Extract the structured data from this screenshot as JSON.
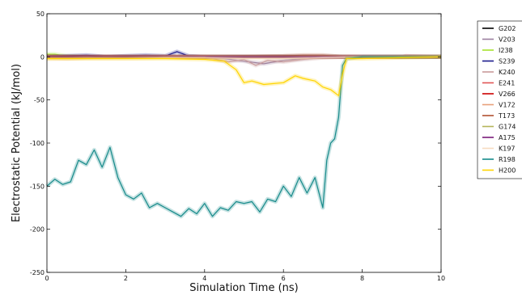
{
  "chart_data": {
    "type": "line",
    "xlabel": "Simulation Time (ns)",
    "ylabel": "Electrostatic Potential (kJ/mol)",
    "xlim": [
      0,
      10
    ],
    "ylim": [
      -250,
      50
    ],
    "xticks": [
      0,
      2,
      4,
      6,
      8,
      10
    ],
    "yticks": [
      50,
      0,
      -50,
      -100,
      -150,
      -200,
      -250
    ],
    "grid": false,
    "legend": "right-outside",
    "series": [
      {
        "name": "G202",
        "color": "#000000",
        "x": [
          0,
          1,
          2,
          3,
          4,
          5,
          6,
          7,
          7.5,
          8,
          9,
          10
        ],
        "y": [
          0,
          0,
          0,
          0,
          0,
          0,
          0,
          0,
          0,
          0,
          0,
          0
        ]
      },
      {
        "name": "V203",
        "color": "#9b7f9e",
        "x": [
          0,
          1,
          2,
          3,
          4,
          4.5,
          5,
          5.5,
          6,
          6.5,
          7,
          7.5,
          8,
          9,
          10
        ],
        "y": [
          0,
          0,
          0,
          0,
          0,
          -2,
          -5,
          -8,
          -4,
          -2,
          0,
          0,
          0,
          0,
          0
        ]
      },
      {
        "name": "I238",
        "color": "#a6e22e",
        "x": [
          0,
          0.2,
          0.5,
          1,
          2,
          3,
          4,
          5,
          6,
          7,
          8,
          9,
          10
        ],
        "y": [
          3,
          3,
          1,
          0,
          0,
          0,
          0,
          0,
          0,
          0,
          0,
          0,
          0
        ]
      },
      {
        "name": "S239",
        "color": "#1a1a8c",
        "x": [
          0,
          0.5,
          1,
          1.5,
          2,
          2.5,
          3,
          3.3,
          3.6,
          4,
          5,
          6,
          7,
          8,
          9,
          10
        ],
        "y": [
          0,
          1,
          2,
          0,
          1,
          2,
          1,
          6,
          1,
          0,
          0,
          0,
          0,
          0,
          0,
          0
        ]
      },
      {
        "name": "K240",
        "color": "#c99a9a",
        "x": [
          0,
          1,
          2,
          3,
          4,
          4.6,
          5,
          5.3,
          5.6,
          6,
          6.5,
          7,
          7.5,
          8,
          9,
          10
        ],
        "y": [
          0,
          0,
          0,
          0,
          0,
          -6,
          -3,
          -10,
          -4,
          -6,
          -3,
          -1,
          0,
          0,
          0,
          0
        ]
      },
      {
        "name": "E241",
        "color": "#e05555",
        "x": [
          0,
          1,
          2,
          3,
          4,
          5,
          6,
          7,
          8,
          9,
          9.1,
          10
        ],
        "y": [
          0,
          0,
          0,
          0,
          0,
          0,
          0,
          0,
          0,
          0,
          1,
          0
        ]
      },
      {
        "name": "V266",
        "color": "#cc0000",
        "x": [
          0,
          1,
          2,
          3,
          4,
          5,
          6,
          7,
          8,
          9,
          10
        ],
        "y": [
          0,
          0,
          0,
          0,
          0,
          0,
          0,
          0,
          0,
          0,
          0
        ]
      },
      {
        "name": "V172",
        "color": "#e8a07a",
        "x": [
          0,
          0.5,
          1,
          2,
          3,
          4,
          5,
          6,
          7,
          8,
          9,
          10
        ],
        "y": [
          -1,
          -2,
          -1,
          0,
          0,
          0,
          0,
          0,
          0,
          0,
          0,
          0
        ]
      },
      {
        "name": "T173",
        "color": "#b05030",
        "x": [
          0,
          1,
          2,
          3,
          4,
          5,
          6,
          6.5,
          7,
          7.5,
          8,
          9,
          10
        ],
        "y": [
          0,
          0,
          0,
          0,
          0,
          0,
          1,
          2,
          2,
          0,
          0,
          0,
          0
        ]
      },
      {
        "name": "G174",
        "color": "#b5b55a",
        "x": [
          0,
          1,
          2,
          3,
          4,
          5,
          6,
          7,
          8,
          9,
          10
        ],
        "y": [
          0,
          0,
          0,
          0,
          0,
          0,
          0,
          0,
          0,
          0,
          0
        ]
      },
      {
        "name": "A175",
        "color": "#7a1a7a",
        "x": [
          0,
          1,
          2,
          3,
          4,
          5,
          6,
          7,
          8,
          9,
          10
        ],
        "y": [
          0,
          0,
          0,
          0,
          0,
          0,
          0,
          0,
          0,
          0,
          0
        ]
      },
      {
        "name": "K197",
        "color": "#f7dcc0",
        "x": [
          0,
          1,
          2,
          3,
          4,
          5,
          6,
          7,
          8,
          9,
          10
        ],
        "y": [
          -3,
          -2,
          -2,
          -1,
          -1,
          -2,
          -2,
          -1,
          0,
          0,
          0
        ]
      },
      {
        "name": "R198",
        "color": "#168a8a",
        "x": [
          0,
          0.2,
          0.4,
          0.6,
          0.8,
          1.0,
          1.2,
          1.4,
          1.6,
          1.8,
          2.0,
          2.2,
          2.4,
          2.6,
          2.8,
          3.0,
          3.2,
          3.4,
          3.6,
          3.8,
          4.0,
          4.2,
          4.4,
          4.6,
          4.8,
          5.0,
          5.2,
          5.4,
          5.6,
          5.8,
          6.0,
          6.2,
          6.4,
          6.6,
          6.8,
          7.0,
          7.1,
          7.2,
          7.3,
          7.4,
          7.5,
          7.6,
          8,
          9,
          10
        ],
        "y": [
          -150,
          -142,
          -148,
          -145,
          -120,
          -125,
          -108,
          -128,
          -105,
          -140,
          -160,
          -165,
          -158,
          -175,
          -170,
          -175,
          -180,
          -185,
          -176,
          -182,
          -170,
          -185,
          -175,
          -178,
          -168,
          -170,
          -168,
          -180,
          -165,
          -168,
          -150,
          -162,
          -140,
          -158,
          -140,
          -175,
          -120,
          -100,
          -95,
          -70,
          -10,
          -2,
          0,
          0,
          0
        ]
      },
      {
        "name": "H200",
        "color": "#ffd400",
        "x": [
          0,
          1,
          2,
          3,
          4,
          4.5,
          4.8,
          5.0,
          5.2,
          5.5,
          6.0,
          6.3,
          6.5,
          6.8,
          7.0,
          7.2,
          7.4,
          7.5,
          7.6,
          8,
          9,
          10
        ],
        "y": [
          -2,
          -2,
          -2,
          -2,
          -3,
          -5,
          -15,
          -30,
          -28,
          -32,
          -30,
          -22,
          -25,
          -28,
          -35,
          -38,
          -45,
          -20,
          -2,
          -2,
          -1,
          0
        ]
      }
    ]
  }
}
